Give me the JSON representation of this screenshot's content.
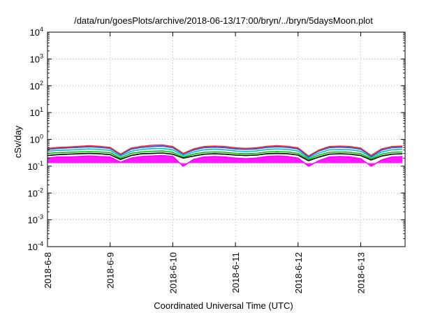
{
  "chart_data": {
    "type": "line",
    "title": "/data/run/goesPlots/archive/2018-06-13/17:00/bryn/../bryn/5daysMoon.plot",
    "xlabel": "Coordinated Universal Time (UTC)",
    "ylabel": "cSv/day",
    "x_axis": {
      "type": "time",
      "start": "2018-06-08",
      "end": "2018-06-13T17:00"
    },
    "yscale": "log",
    "ylim": [
      0.0001,
      10000
    ],
    "y_ticks": [
      {
        "value": 0.0001,
        "base": "10",
        "exp": "-4"
      },
      {
        "value": 0.001,
        "base": "10",
        "exp": "-3"
      },
      {
        "value": 0.01,
        "base": "10",
        "exp": "-2"
      },
      {
        "value": 0.1,
        "base": "10",
        "exp": "-1"
      },
      {
        "value": 1,
        "base": "10",
        "exp": "0"
      },
      {
        "value": 10,
        "base": "10",
        "exp": "1"
      },
      {
        "value": 100,
        "base": "10",
        "exp": "2"
      },
      {
        "value": 1000,
        "base": "10",
        "exp": "3"
      },
      {
        "value": 10000,
        "base": "10",
        "exp": "4"
      }
    ],
    "x_ticks": [
      {
        "date": "2018-06-08",
        "label": "2018-6-8"
      },
      {
        "date": "2018-06-09",
        "label": "2018-6-9"
      },
      {
        "date": "2018-06-10",
        "label": "2018-6-10"
      },
      {
        "date": "2018-06-11",
        "label": "2018-6-11"
      },
      {
        "date": "2018-06-12",
        "label": "2018-6-12"
      },
      {
        "date": "2018-06-13",
        "label": "2018-6-13"
      }
    ],
    "grid": true,
    "x": [
      "2018-06-08T00:00",
      "2018-06-08T04:00",
      "2018-06-08T08:00",
      "2018-06-08T12:00",
      "2018-06-08T16:00",
      "2018-06-08T20:00",
      "2018-06-09T00:00",
      "2018-06-09T04:00",
      "2018-06-09T08:00",
      "2018-06-09T12:00",
      "2018-06-09T16:00",
      "2018-06-09T20:00",
      "2018-06-10T00:00",
      "2018-06-10T04:00",
      "2018-06-10T08:00",
      "2018-06-10T12:00",
      "2018-06-10T16:00",
      "2018-06-10T20:00",
      "2018-06-11T00:00",
      "2018-06-11T04:00",
      "2018-06-11T08:00",
      "2018-06-11T12:00",
      "2018-06-11T16:00",
      "2018-06-11T20:00",
      "2018-06-12T00:00",
      "2018-06-12T04:00",
      "2018-06-12T08:00",
      "2018-06-12T12:00",
      "2018-06-12T16:00",
      "2018-06-12T20:00",
      "2018-06-13T00:00",
      "2018-06-13T04:00",
      "2018-06-13T08:00",
      "2018-06-13T12:00",
      "2018-06-13T16:00"
    ],
    "series": [
      {
        "color": "#ff00ff",
        "fill": true,
        "values": [
          0.2,
          0.22,
          0.22,
          0.23,
          0.24,
          0.23,
          0.22,
          0.14,
          0.2,
          0.23,
          0.24,
          0.25,
          0.23,
          0.1,
          0.18,
          0.22,
          0.23,
          0.22,
          0.2,
          0.19,
          0.2,
          0.23,
          0.24,
          0.23,
          0.2,
          0.1,
          0.16,
          0.22,
          0.23,
          0.22,
          0.19,
          0.1,
          0.17,
          0.22,
          0.23
        ]
      },
      {
        "color": "#000000",
        "values": [
          0.25,
          0.27,
          0.28,
          0.29,
          0.3,
          0.29,
          0.27,
          0.18,
          0.25,
          0.29,
          0.3,
          0.31,
          0.28,
          0.2,
          0.24,
          0.28,
          0.29,
          0.28,
          0.26,
          0.25,
          0.26,
          0.29,
          0.3,
          0.29,
          0.26,
          0.16,
          0.22,
          0.28,
          0.29,
          0.28,
          0.25,
          0.17,
          0.24,
          0.28,
          0.29
        ]
      },
      {
        "color": "#00c000",
        "values": [
          0.3,
          0.32,
          0.33,
          0.34,
          0.35,
          0.34,
          0.32,
          0.2,
          0.3,
          0.34,
          0.36,
          0.37,
          0.33,
          0.22,
          0.28,
          0.33,
          0.34,
          0.33,
          0.3,
          0.29,
          0.3,
          0.34,
          0.35,
          0.34,
          0.3,
          0.18,
          0.26,
          0.33,
          0.34,
          0.33,
          0.29,
          0.19,
          0.28,
          0.33,
          0.34
        ]
      },
      {
        "color": "#00c0c0",
        "values": [
          0.36,
          0.39,
          0.4,
          0.42,
          0.44,
          0.42,
          0.39,
          0.23,
          0.36,
          0.42,
          0.45,
          0.46,
          0.41,
          0.25,
          0.34,
          0.41,
          0.43,
          0.41,
          0.37,
          0.35,
          0.37,
          0.42,
          0.44,
          0.42,
          0.37,
          0.2,
          0.31,
          0.41,
          0.42,
          0.41,
          0.36,
          0.21,
          0.34,
          0.41,
          0.43
        ]
      },
      {
        "color": "#1060ff",
        "values": [
          0.42,
          0.46,
          0.48,
          0.5,
          0.53,
          0.5,
          0.46,
          0.26,
          0.43,
          0.5,
          0.54,
          0.56,
          0.49,
          0.28,
          0.4,
          0.49,
          0.51,
          0.49,
          0.44,
          0.42,
          0.44,
          0.5,
          0.53,
          0.5,
          0.44,
          0.22,
          0.37,
          0.49,
          0.51,
          0.49,
          0.43,
          0.23,
          0.4,
          0.49,
          0.51
        ]
      },
      {
        "color": "#ff2020",
        "values": [
          0.46,
          0.5,
          0.52,
          0.55,
          0.58,
          0.55,
          0.5,
          0.28,
          0.47,
          0.55,
          0.6,
          0.62,
          0.54,
          0.3,
          0.44,
          0.54,
          0.56,
          0.54,
          0.48,
          0.46,
          0.48,
          0.55,
          0.58,
          0.55,
          0.48,
          0.24,
          0.4,
          0.54,
          0.56,
          0.54,
          0.47,
          0.25,
          0.44,
          0.54,
          0.56
        ]
      }
    ]
  }
}
